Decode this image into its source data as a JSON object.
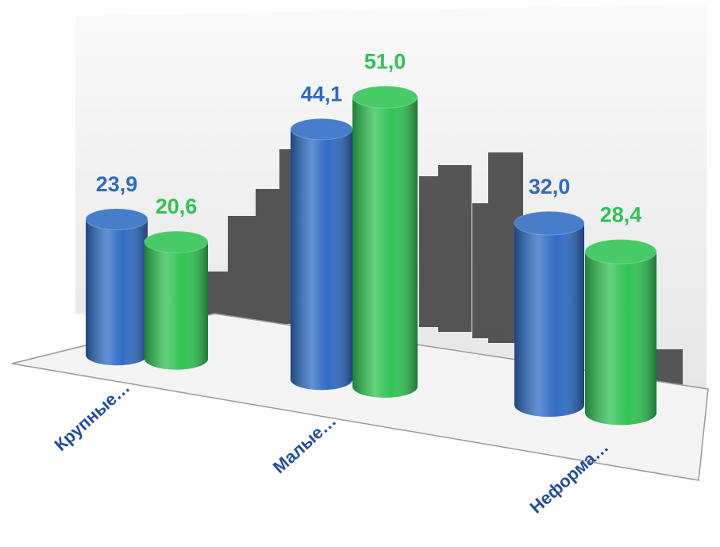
{
  "chart_data": {
    "type": "bar",
    "categories": [
      "Крупные…",
      "Малые…",
      "Неформа…"
    ],
    "series": [
      {
        "color": "#2e6bc4",
        "values": [
          23.9,
          44.1,
          32.0
        ],
        "value_labels": [
          "23,9",
          "44,1",
          "32,0"
        ]
      },
      {
        "color": "#2fc352",
        "values": [
          20.6,
          51.0,
          28.4
        ],
        "value_labels": [
          "20,6",
          "51,0",
          "28,4"
        ]
      }
    ]
  }
}
